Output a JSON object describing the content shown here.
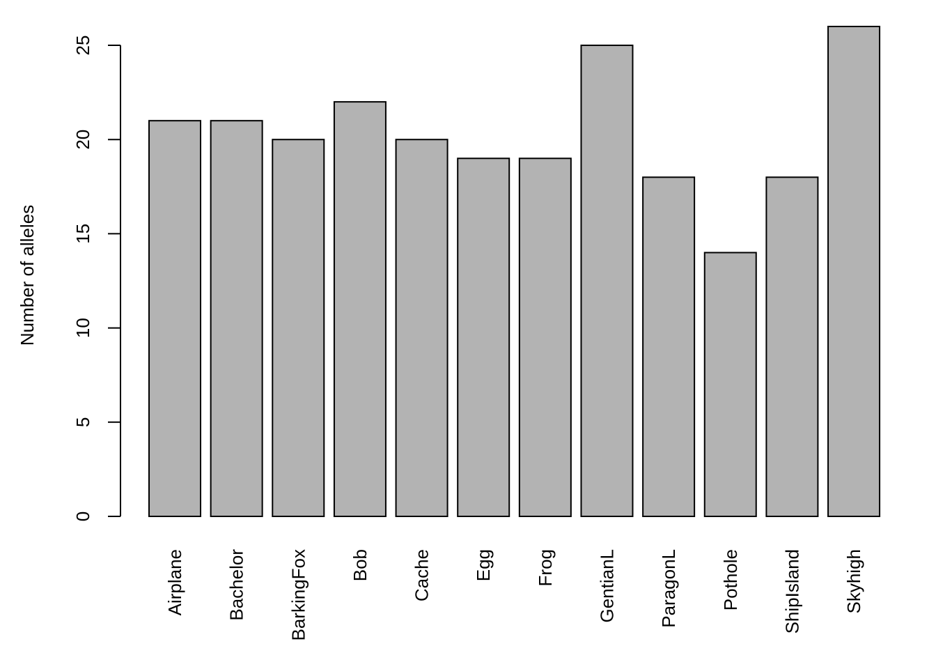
{
  "chart_data": {
    "type": "bar",
    "y_label": "Number of alleles",
    "categories": [
      "Airplane",
      "Bachelor",
      "BarkingFox",
      "Bob",
      "Cache",
      "Egg",
      "Frog",
      "GentianL",
      "ParagonL",
      "Pothole",
      "ShipIsland",
      "Skyhigh"
    ],
    "values": [
      21,
      21,
      20,
      22,
      20,
      19,
      19,
      25,
      18,
      14,
      18,
      26
    ],
    "color": "#b3b3b3",
    "ylim": [
      0,
      26
    ],
    "yticks": [
      0,
      5,
      10,
      15,
      20,
      25
    ]
  }
}
